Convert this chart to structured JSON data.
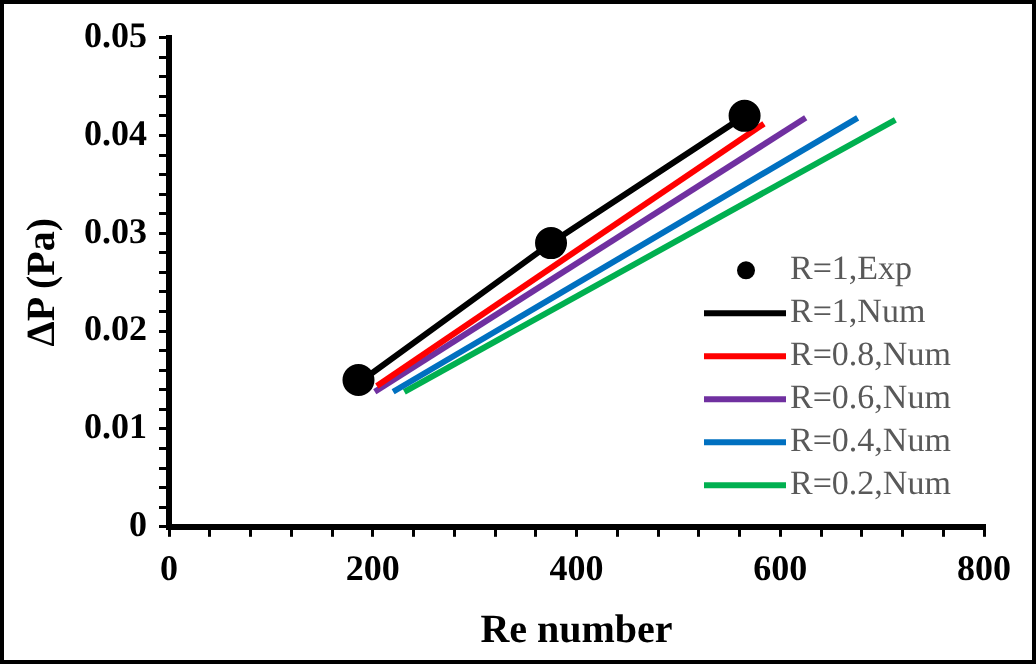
{
  "chart_data": {
    "type": "line",
    "xlabel": "Re number",
    "ylabel": "ΔP (Pa)",
    "xlim": [
      0,
      800
    ],
    "ylim": [
      0,
      0.05
    ],
    "xticks": [
      0,
      {
        "value": 40,
        "label": null
      },
      {
        "value": 80,
        "label": null
      },
      {
        "value": 120,
        "label": null
      },
      {
        "value": 160,
        "label": null
      },
      200,
      {
        "value": 240,
        "label": null
      },
      {
        "value": 280,
        "label": null
      },
      {
        "value": 320,
        "label": null
      },
      {
        "value": 360,
        "label": null
      },
      400,
      {
        "value": 440,
        "label": null
      },
      {
        "value": 480,
        "label": null
      },
      {
        "value": 520,
        "label": null
      },
      {
        "value": 560,
        "label": null
      },
      600,
      {
        "value": 640,
        "label": null
      },
      {
        "value": 680,
        "label": null
      },
      {
        "value": 720,
        "label": null
      },
      {
        "value": 760,
        "label": null
      },
      800
    ],
    "yticks": [
      0,
      {
        "value": 0.002,
        "label": null
      },
      {
        "value": 0.004,
        "label": null
      },
      {
        "value": 0.006,
        "label": null
      },
      {
        "value": 0.008,
        "label": null
      },
      0.01,
      {
        "value": 0.012,
        "label": null
      },
      {
        "value": 0.014,
        "label": null
      },
      {
        "value": 0.016,
        "label": null
      },
      {
        "value": 0.018,
        "label": null
      },
      0.02,
      {
        "value": 0.022,
        "label": null
      },
      {
        "value": 0.024,
        "label": null
      },
      {
        "value": 0.026,
        "label": null
      },
      {
        "value": 0.028,
        "label": null
      },
      0.03,
      {
        "value": 0.032,
        "label": null
      },
      {
        "value": 0.034,
        "label": null
      },
      {
        "value": 0.036,
        "label": null
      },
      {
        "value": 0.038,
        "label": null
      },
      0.04,
      {
        "value": 0.042,
        "label": null
      },
      {
        "value": 0.044,
        "label": null
      },
      {
        "value": 0.046,
        "label": null
      },
      {
        "value": 0.048,
        "label": null
      },
      0.05
    ],
    "grid": false,
    "legend": "bottom right",
    "marker": "none",
    "series": [
      {
        "name": "R=1,Exp",
        "type": "scatter",
        "marker": "circle",
        "color": "#000000",
        "x": [
          186,
          375,
          565
        ],
        "values": [
          0.015,
          0.029,
          0.042
        ]
      },
      {
        "name": "R=1,Num",
        "color": "#000000",
        "x": [
          190,
          375,
          565
        ],
        "values": [
          0.015,
          0.029,
          0.042
        ]
      },
      {
        "name": "R=0.8,Num",
        "color": "#ff0000",
        "x": [
          204,
          584
        ],
        "values": [
          0.0144,
          0.0412
        ]
      },
      {
        "name": "R=0.6,Num",
        "color": "#7030a0",
        "x": [
          202,
          625
        ],
        "values": [
          0.0138,
          0.0418
        ]
      },
      {
        "name": "R=0.4,Num",
        "color": "#0070c0",
        "x": [
          220,
          676
        ],
        "values": [
          0.0138,
          0.0418
        ]
      },
      {
        "name": "R=0.2,Num",
        "color": "#00b050",
        "x": [
          231,
          713
        ],
        "values": [
          0.0138,
          0.0416
        ]
      }
    ]
  }
}
